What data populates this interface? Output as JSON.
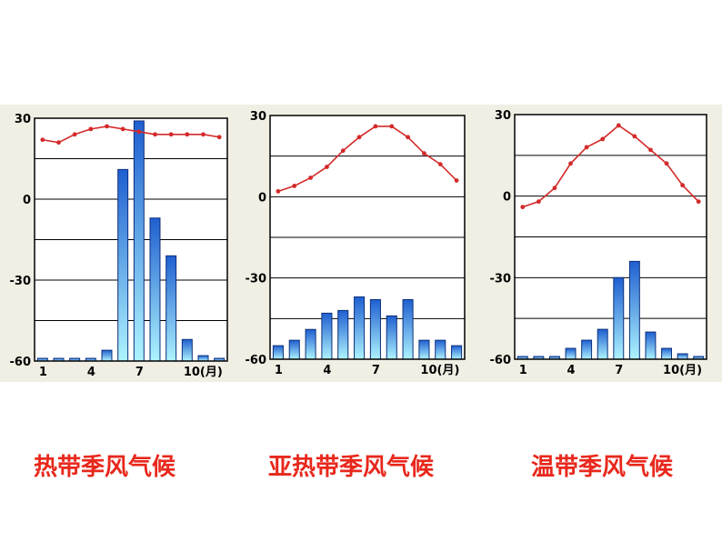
{
  "chart_data": [
    {
      "type": "bar+line",
      "title": "热带季风气候",
      "y_ticks": [
        "30",
        "0",
        "-30",
        "-60"
      ],
      "x_ticks": [
        "1",
        "4",
        "7",
        "10(月)"
      ],
      "temperature": [
        22,
        21,
        24,
        26,
        27,
        26,
        25,
        24,
        24,
        24,
        24,
        23
      ],
      "precipitation": [
        1,
        1,
        1,
        1,
        4,
        71,
        89,
        53,
        39,
        8,
        2,
        1
      ],
      "temp_ylim": [
        -60,
        30
      ],
      "precip_ylim": [
        0,
        90
      ],
      "colors": {
        "bar_top": "#1f5fd0",
        "bar_bottom": "#aef4ff",
        "line": "#d42a2a"
      }
    },
    {
      "type": "bar+line",
      "title": "亚热带季风气候",
      "y_ticks": [
        "30",
        "0",
        "-30",
        "-60"
      ],
      "x_ticks": [
        "1",
        "4",
        "7",
        "10(月)"
      ],
      "temperature": [
        2,
        4,
        7,
        11,
        17,
        22,
        26,
        26,
        22,
        16,
        12,
        6
      ],
      "precipitation": [
        5,
        7,
        11,
        17,
        18,
        23,
        22,
        16,
        22,
        7,
        7,
        5
      ],
      "temp_ylim": [
        -60,
        30
      ],
      "precip_ylim": [
        0,
        90
      ],
      "colors": {
        "bar_top": "#1f5fd0",
        "bar_bottom": "#aef4ff",
        "line": "#d42a2a"
      }
    },
    {
      "type": "bar+line",
      "title": "温带季风气候",
      "y_ticks": [
        "30",
        "0",
        "-30",
        "-60"
      ],
      "x_ticks": [
        "1",
        "4",
        "7",
        "10(月)"
      ],
      "temperature": [
        -4,
        -2,
        3,
        12,
        18,
        21,
        26,
        22,
        17,
        12,
        4,
        -2
      ],
      "precipitation": [
        1,
        1,
        1,
        4,
        7,
        11,
        30,
        36,
        10,
        4,
        2,
        1
      ],
      "temp_ylim": [
        -60,
        30
      ],
      "precip_ylim": [
        0,
        90
      ],
      "colors": {
        "bar_top": "#1f5fd0",
        "bar_bottom": "#aef4ff",
        "line": "#d42a2a"
      }
    }
  ]
}
